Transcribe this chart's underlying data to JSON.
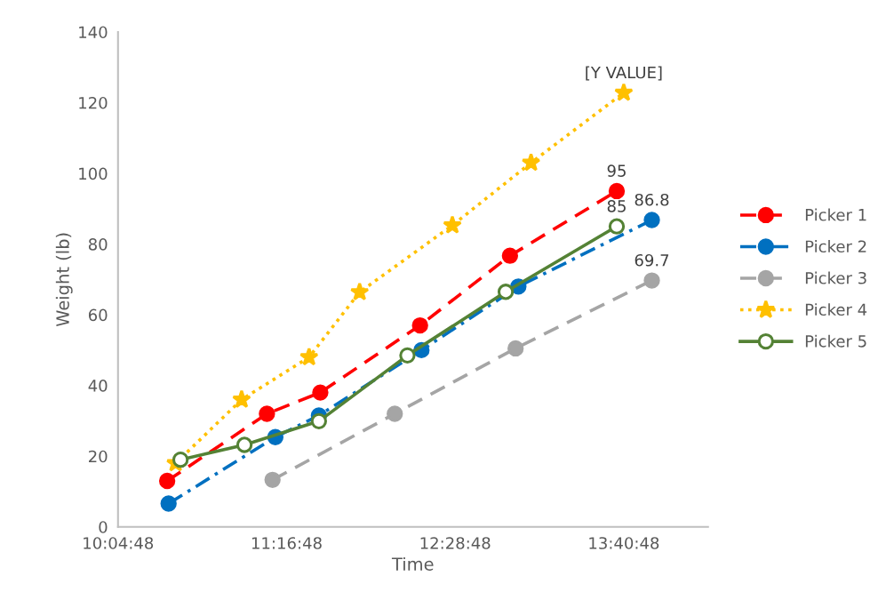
{
  "chart_data": {
    "type": "line",
    "xlabel": "Time",
    "ylabel": "Weight (lb)",
    "xlim": [
      10.08,
      14.28
    ],
    "xticks": [
      {
        "value": 10.08,
        "label": "10:04:48"
      },
      {
        "value": 11.28,
        "label": "11:16:48"
      },
      {
        "value": 12.48,
        "label": "12:28:48"
      },
      {
        "value": 13.68,
        "label": "13:40:48"
      }
    ],
    "ylim": [
      0,
      140
    ],
    "yticks": [
      0,
      20,
      40,
      60,
      80,
      100,
      120,
      140
    ],
    "grid": false,
    "legend": "right",
    "series": [
      {
        "name": "Picker 1",
        "color": "#ff0000",
        "marker": "circle",
        "line_style": "dashed",
        "x": [
          10.43,
          11.14,
          11.52,
          12.23,
          12.87,
          13.63
        ],
        "values": [
          13,
          32,
          38,
          57,
          76.7,
          95
        ],
        "value_labels": [
          null,
          null,
          null,
          null,
          null,
          "95"
        ]
      },
      {
        "name": "Picker 2",
        "color": "#0070c0",
        "marker": "circle",
        "line_style": "dashdot",
        "x": [
          10.44,
          11.2,
          11.51,
          12.24,
          12.93,
          13.88
        ],
        "values": [
          6.6,
          25.4,
          31.5,
          50,
          68,
          86.8
        ],
        "value_labels": [
          null,
          null,
          null,
          null,
          null,
          "86.8"
        ]
      },
      {
        "name": "Picker 3",
        "color": "#a5a5a5",
        "marker": "circle",
        "line_style": "dashed",
        "x": [
          11.18,
          12.05,
          12.91,
          13.88
        ],
        "values": [
          13.3,
          32,
          50.5,
          69.7
        ],
        "value_labels": [
          null,
          null,
          null,
          "69.7"
        ]
      },
      {
        "name": "Picker 4",
        "color": "#ffc000",
        "marker": "star",
        "line_style": "dotted",
        "x": [
          10.49,
          10.96,
          11.44,
          11.8,
          12.46,
          13.02,
          13.68
        ],
        "values": [
          18,
          36,
          48,
          66.4,
          85.3,
          103,
          122.8
        ],
        "value_labels": [
          null,
          null,
          null,
          null,
          null,
          null,
          "[Y VALUE]"
        ]
      },
      {
        "name": "Picker 5",
        "color": "#548235",
        "marker": "circle_open",
        "line_style": "solid",
        "x": [
          10.525,
          10.98,
          11.51,
          12.14,
          12.84,
          13.63
        ],
        "values": [
          19,
          23.2,
          29.9,
          48.5,
          66.5,
          85
        ],
        "value_labels": [
          null,
          null,
          null,
          null,
          null,
          "85"
        ]
      }
    ]
  }
}
